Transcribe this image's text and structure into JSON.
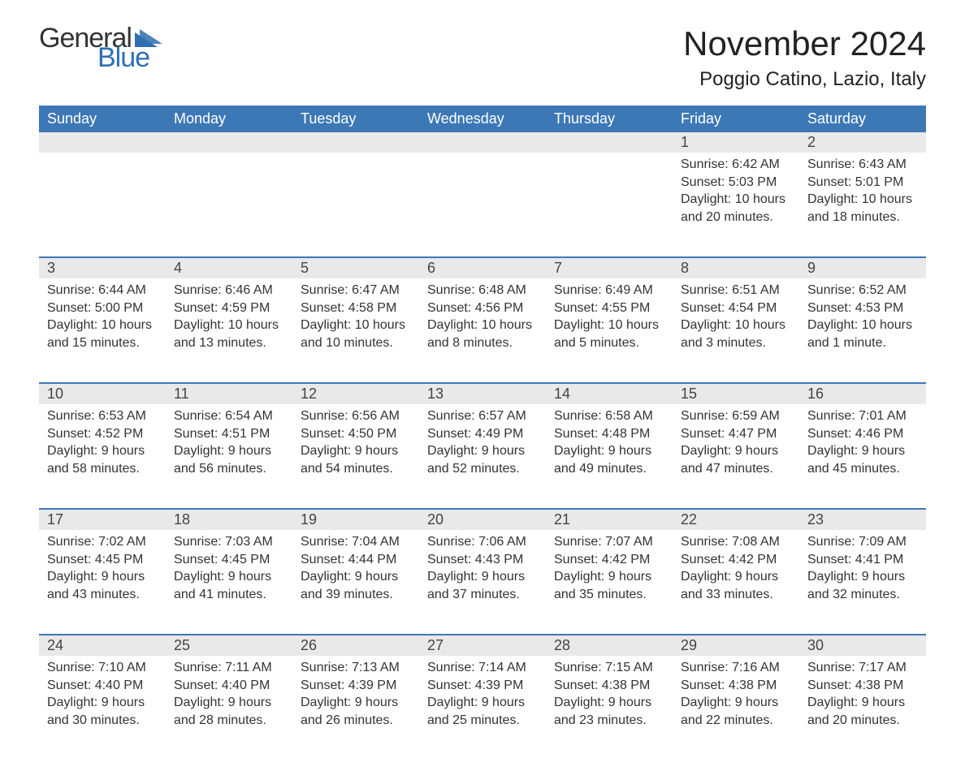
{
  "logo": {
    "general": "General",
    "blue": "Blue",
    "tri_color": "#2f6fb0"
  },
  "title": "November 2024",
  "location": "Poggio Catino, Lazio, Italy",
  "colors": {
    "header_bg": "#3d78b6",
    "header_text": "#ffffff",
    "strip_bg": "#e9e9e9",
    "row_border": "#3d78b6",
    "text": "#333333",
    "background": "#ffffff"
  },
  "fonts": {
    "title_pt": 42,
    "location_pt": 24,
    "weekday_pt": 18,
    "daynum_pt": 18,
    "body_pt": 16
  },
  "weekdays": [
    "Sunday",
    "Monday",
    "Tuesday",
    "Wednesday",
    "Thursday",
    "Friday",
    "Saturday"
  ],
  "weeks": [
    [
      null,
      null,
      null,
      null,
      null,
      {
        "n": "1",
        "sunrise": "Sunrise: 6:42 AM",
        "sunset": "Sunset: 5:03 PM",
        "d1": "Daylight: 10 hours",
        "d2": "and 20 minutes."
      },
      {
        "n": "2",
        "sunrise": "Sunrise: 6:43 AM",
        "sunset": "Sunset: 5:01 PM",
        "d1": "Daylight: 10 hours",
        "d2": "and 18 minutes."
      }
    ],
    [
      {
        "n": "3",
        "sunrise": "Sunrise: 6:44 AM",
        "sunset": "Sunset: 5:00 PM",
        "d1": "Daylight: 10 hours",
        "d2": "and 15 minutes."
      },
      {
        "n": "4",
        "sunrise": "Sunrise: 6:46 AM",
        "sunset": "Sunset: 4:59 PM",
        "d1": "Daylight: 10 hours",
        "d2": "and 13 minutes."
      },
      {
        "n": "5",
        "sunrise": "Sunrise: 6:47 AM",
        "sunset": "Sunset: 4:58 PM",
        "d1": "Daylight: 10 hours",
        "d2": "and 10 minutes."
      },
      {
        "n": "6",
        "sunrise": "Sunrise: 6:48 AM",
        "sunset": "Sunset: 4:56 PM",
        "d1": "Daylight: 10 hours",
        "d2": "and 8 minutes."
      },
      {
        "n": "7",
        "sunrise": "Sunrise: 6:49 AM",
        "sunset": "Sunset: 4:55 PM",
        "d1": "Daylight: 10 hours",
        "d2": "and 5 minutes."
      },
      {
        "n": "8",
        "sunrise": "Sunrise: 6:51 AM",
        "sunset": "Sunset: 4:54 PM",
        "d1": "Daylight: 10 hours",
        "d2": "and 3 minutes."
      },
      {
        "n": "9",
        "sunrise": "Sunrise: 6:52 AM",
        "sunset": "Sunset: 4:53 PM",
        "d1": "Daylight: 10 hours",
        "d2": "and 1 minute."
      }
    ],
    [
      {
        "n": "10",
        "sunrise": "Sunrise: 6:53 AM",
        "sunset": "Sunset: 4:52 PM",
        "d1": "Daylight: 9 hours",
        "d2": "and 58 minutes."
      },
      {
        "n": "11",
        "sunrise": "Sunrise: 6:54 AM",
        "sunset": "Sunset: 4:51 PM",
        "d1": "Daylight: 9 hours",
        "d2": "and 56 minutes."
      },
      {
        "n": "12",
        "sunrise": "Sunrise: 6:56 AM",
        "sunset": "Sunset: 4:50 PM",
        "d1": "Daylight: 9 hours",
        "d2": "and 54 minutes."
      },
      {
        "n": "13",
        "sunrise": "Sunrise: 6:57 AM",
        "sunset": "Sunset: 4:49 PM",
        "d1": "Daylight: 9 hours",
        "d2": "and 52 minutes."
      },
      {
        "n": "14",
        "sunrise": "Sunrise: 6:58 AM",
        "sunset": "Sunset: 4:48 PM",
        "d1": "Daylight: 9 hours",
        "d2": "and 49 minutes."
      },
      {
        "n": "15",
        "sunrise": "Sunrise: 6:59 AM",
        "sunset": "Sunset: 4:47 PM",
        "d1": "Daylight: 9 hours",
        "d2": "and 47 minutes."
      },
      {
        "n": "16",
        "sunrise": "Sunrise: 7:01 AM",
        "sunset": "Sunset: 4:46 PM",
        "d1": "Daylight: 9 hours",
        "d2": "and 45 minutes."
      }
    ],
    [
      {
        "n": "17",
        "sunrise": "Sunrise: 7:02 AM",
        "sunset": "Sunset: 4:45 PM",
        "d1": "Daylight: 9 hours",
        "d2": "and 43 minutes."
      },
      {
        "n": "18",
        "sunrise": "Sunrise: 7:03 AM",
        "sunset": "Sunset: 4:45 PM",
        "d1": "Daylight: 9 hours",
        "d2": "and 41 minutes."
      },
      {
        "n": "19",
        "sunrise": "Sunrise: 7:04 AM",
        "sunset": "Sunset: 4:44 PM",
        "d1": "Daylight: 9 hours",
        "d2": "and 39 minutes."
      },
      {
        "n": "20",
        "sunrise": "Sunrise: 7:06 AM",
        "sunset": "Sunset: 4:43 PM",
        "d1": "Daylight: 9 hours",
        "d2": "and 37 minutes."
      },
      {
        "n": "21",
        "sunrise": "Sunrise: 7:07 AM",
        "sunset": "Sunset: 4:42 PM",
        "d1": "Daylight: 9 hours",
        "d2": "and 35 minutes."
      },
      {
        "n": "22",
        "sunrise": "Sunrise: 7:08 AM",
        "sunset": "Sunset: 4:42 PM",
        "d1": "Daylight: 9 hours",
        "d2": "and 33 minutes."
      },
      {
        "n": "23",
        "sunrise": "Sunrise: 7:09 AM",
        "sunset": "Sunset: 4:41 PM",
        "d1": "Daylight: 9 hours",
        "d2": "and 32 minutes."
      }
    ],
    [
      {
        "n": "24",
        "sunrise": "Sunrise: 7:10 AM",
        "sunset": "Sunset: 4:40 PM",
        "d1": "Daylight: 9 hours",
        "d2": "and 30 minutes."
      },
      {
        "n": "25",
        "sunrise": "Sunrise: 7:11 AM",
        "sunset": "Sunset: 4:40 PM",
        "d1": "Daylight: 9 hours",
        "d2": "and 28 minutes."
      },
      {
        "n": "26",
        "sunrise": "Sunrise: 7:13 AM",
        "sunset": "Sunset: 4:39 PM",
        "d1": "Daylight: 9 hours",
        "d2": "and 26 minutes."
      },
      {
        "n": "27",
        "sunrise": "Sunrise: 7:14 AM",
        "sunset": "Sunset: 4:39 PM",
        "d1": "Daylight: 9 hours",
        "d2": "and 25 minutes."
      },
      {
        "n": "28",
        "sunrise": "Sunrise: 7:15 AM",
        "sunset": "Sunset: 4:38 PM",
        "d1": "Daylight: 9 hours",
        "d2": "and 23 minutes."
      },
      {
        "n": "29",
        "sunrise": "Sunrise: 7:16 AM",
        "sunset": "Sunset: 4:38 PM",
        "d1": "Daylight: 9 hours",
        "d2": "and 22 minutes."
      },
      {
        "n": "30",
        "sunrise": "Sunrise: 7:17 AM",
        "sunset": "Sunset: 4:38 PM",
        "d1": "Daylight: 9 hours",
        "d2": "and 20 minutes."
      }
    ]
  ]
}
